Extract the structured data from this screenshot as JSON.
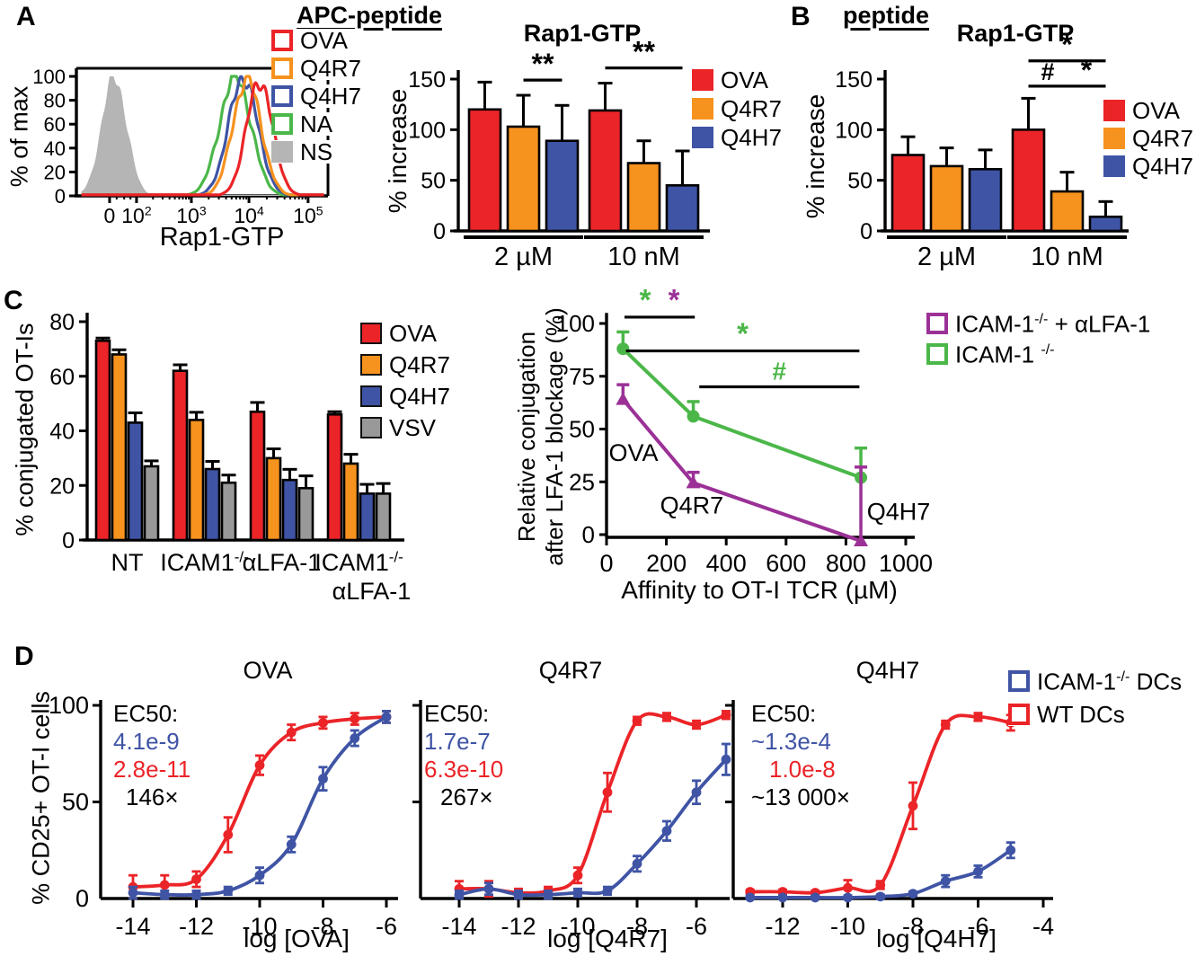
{
  "panel_labels": {
    "a": "A",
    "b": "B",
    "c": "C",
    "d": "D"
  },
  "headers": {
    "apc": "APC-peptide",
    "b": "peptide"
  },
  "colors": {
    "red": "#EB2428",
    "orange": "#F6921E",
    "blue": "#3F54A5",
    "green": "#4BB749",
    "gray": "#B5B5B5",
    "purple": "#9B3197",
    "black": "#000000"
  },
  "legends": {
    "hist": {
      "items": [
        {
          "label": "OVA",
          "color": "#EB2428",
          "filled": false
        },
        {
          "label": "Q4R7",
          "color": "#F6921E",
          "filled": false
        },
        {
          "label": "Q4H7",
          "color": "#3F54A5",
          "filled": false
        },
        {
          "label": "NA",
          "color": "#4BB749",
          "filled": false
        },
        {
          "label": "NS",
          "color": "#B5B5B5",
          "filled": true
        }
      ]
    },
    "rap1_a": {
      "items": [
        {
          "label": "OVA",
          "color": "#EB2428",
          "filled": true
        },
        {
          "label": "Q4R7",
          "color": "#F6921E",
          "filled": true
        },
        {
          "label": "Q4H7",
          "color": "#3F54A5",
          "filled": true
        }
      ]
    },
    "rap1_b": {
      "items": [
        {
          "label": "OVA",
          "color": "#EB2428",
          "filled": true
        },
        {
          "label": "Q4R7",
          "color": "#F6921E",
          "filled": true
        },
        {
          "label": "Q4H7",
          "color": "#3F54A5",
          "filled": true
        }
      ]
    },
    "conjugation": {
      "items": [
        {
          "label": "OVA",
          "color": "#EB2428",
          "filled": true,
          "edge": "#111111"
        },
        {
          "label": "Q4R7",
          "color": "#F6921E",
          "filled": true,
          "edge": "#111111"
        },
        {
          "label": "Q4H7",
          "color": "#3F54A5",
          "filled": true,
          "edge": "#111111"
        },
        {
          "label": "VSV",
          "color": "#999999",
          "filled": true,
          "edge": "#111111"
        }
      ]
    },
    "blockage": {
      "items": [
        {
          "label": "ICAM-1^{-/-} + αLFA-1",
          "color": "#9B3197",
          "filled": false
        },
        {
          "label": "ICAM-1 ^{-/-}",
          "color": "#4BB749",
          "filled": false
        }
      ]
    },
    "dcs": {
      "items": [
        {
          "label": "ICAM-1^{-/-} DCs",
          "color": "#3F54A5",
          "filled": false
        },
        {
          "label": "WT DCs",
          "color": "#EB2428",
          "filled": false
        }
      ]
    }
  },
  "chart_data": [
    {
      "id": "flow-histogram",
      "type": "flow-histogram",
      "title": "",
      "xlabel": "Rap1-GTP",
      "ylabel": "% of max",
      "yticks": [
        0,
        20,
        40,
        60,
        80,
        100
      ],
      "xticks": [
        "0",
        "10^{2}",
        "10^{3}",
        "10^{4}",
        "10^{5}"
      ],
      "series": [
        {
          "name": "NS",
          "color": "#B5B5B5",
          "filled": true,
          "center": 0.15,
          "sigma": 0.05,
          "height": 100
        },
        {
          "name": "NA",
          "color": "#4BB749",
          "filled": false,
          "center": 0.632,
          "sigma": 0.062,
          "height": 100
        },
        {
          "name": "Q4H7",
          "color": "#3F54A5",
          "filled": false,
          "center": 0.663,
          "sigma": 0.058,
          "height": 99
        },
        {
          "name": "Q4R7",
          "color": "#F6921E",
          "filled": false,
          "center": 0.678,
          "sigma": 0.056,
          "height": 98
        },
        {
          "name": "OVA",
          "color": "#EB2428",
          "filled": false,
          "center": 0.728,
          "sigma": 0.052,
          "height": 96
        }
      ]
    },
    {
      "id": "rap1-apc-bars",
      "type": "bar",
      "title": "Rap1-GTP",
      "ylabel": "% increase",
      "ylim": [
        0,
        150
      ],
      "yticks": [
        0,
        50,
        100,
        150
      ],
      "groups": [
        "2 µM",
        "10 nM"
      ],
      "series": [
        {
          "name": "OVA",
          "color": "#EB2428",
          "values": [
            120,
            119
          ],
          "errors": [
            27,
            27
          ]
        },
        {
          "name": "Q4R7",
          "color": "#F6921E",
          "values": [
            103,
            67
          ],
          "errors": [
            31,
            22
          ]
        },
        {
          "name": "Q4H7",
          "color": "#3F54A5",
          "values": [
            89,
            45
          ],
          "errors": [
            35,
            34
          ]
        }
      ],
      "sig": [
        {
          "label": "**",
          "from": [
            0,
            1
          ],
          "to": [
            0,
            2
          ],
          "y": 149
        },
        {
          "label": "**",
          "from": [
            1,
            0
          ],
          "to": [
            1,
            2
          ],
          "y": 161
        }
      ]
    },
    {
      "id": "rap1-peptide-bars",
      "type": "bar",
      "title": "Rap1-GTP",
      "ylabel": "% increase",
      "ylim": [
        0,
        150
      ],
      "yticks": [
        0,
        50,
        100,
        150
      ],
      "groups": [
        "2 µM",
        "10 nM"
      ],
      "series": [
        {
          "name": "OVA",
          "color": "#EB2428",
          "values": [
            75,
            100
          ],
          "errors": [
            18,
            31
          ]
        },
        {
          "name": "Q4R7",
          "color": "#F6921E",
          "values": [
            64,
            39
          ],
          "errors": [
            18,
            19
          ]
        },
        {
          "name": "Q4H7",
          "color": "#3F54A5",
          "values": [
            61,
            14
          ],
          "errors": [
            19,
            15
          ]
        }
      ],
      "sig": [
        {
          "label": "*",
          "from": [
            1,
            0
          ],
          "to": [
            1,
            2
          ],
          "y": 168
        },
        {
          "label": "#",
          "from": [
            1,
            0
          ],
          "to": [
            1,
            1
          ],
          "y": 143
        },
        {
          "label": "*",
          "from": [
            1,
            1
          ],
          "to": [
            1,
            2
          ],
          "y": 143
        }
      ]
    },
    {
      "id": "conjugation-bars",
      "type": "bar",
      "title": "",
      "ylabel": "% conjugated OT-Is",
      "ylim": [
        0,
        80
      ],
      "yticks": [
        0,
        20,
        40,
        60,
        80
      ],
      "groups": [
        [
          "NT"
        ],
        [
          "ICAM1^{-/-}"
        ],
        [
          "αLFA-1"
        ],
        [
          "ICAM1^{-/-}",
          "αLFA-1"
        ]
      ],
      "series": [
        {
          "name": "OVA",
          "color": "#EB2428",
          "values": [
            73,
            62,
            47,
            46
          ],
          "errors": [
            1,
            2.2,
            3.4,
            1
          ]
        },
        {
          "name": "Q4R7",
          "color": "#F6921E",
          "values": [
            68,
            44,
            30,
            28
          ],
          "errors": [
            1.7,
            2.8,
            3.4,
            3.4
          ]
        },
        {
          "name": "Q4H7",
          "color": "#3F54A5",
          "values": [
            43,
            26,
            22,
            17
          ],
          "errors": [
            3.6,
            2.8,
            3.9,
            3.4
          ]
        },
        {
          "name": "VSV",
          "color": "#999999",
          "values": [
            27,
            21,
            19,
            17
          ],
          "errors": [
            2,
            2.8,
            4.5,
            3.7
          ]
        }
      ],
      "sig": []
    },
    {
      "id": "conjugation-line",
      "type": "line",
      "title": "",
      "ylabel_lines": [
        "Relative conjugation",
        "after LFA-1 blockage (%)"
      ],
      "xlabel": "Affinity to OT-I TCR (µM)",
      "xlim": [
        0,
        1000
      ],
      "xticks": [
        0,
        200,
        400,
        600,
        800,
        1000
      ],
      "ylim": [
        0,
        100
      ],
      "yticks": [
        0,
        25,
        50,
        75,
        100
      ],
      "series": [
        {
          "name": "ICAM-1^{-/-}",
          "color": "#4BB749",
          "marker": "circle",
          "x": [
            55,
            290,
            850
          ],
          "y": [
            88,
            56,
            27
          ],
          "errors": [
            8,
            7,
            14
          ]
        },
        {
          "name": "ICAM-1^{-/-} + αLFA-1",
          "color": "#9B3197",
          "marker": "triangle",
          "x": [
            55,
            290,
            850
          ],
          "y": [
            64,
            24.5,
            -3
          ],
          "errors": [
            7,
            5,
            35
          ]
        }
      ],
      "point_labels": [
        {
          "text": "OVA",
          "x": 90,
          "y": 35
        },
        {
          "text": "Q4R7",
          "x": 285,
          "y": 10
        },
        {
          "text": "Q4H7",
          "x": 976,
          "y": 7
        }
      ],
      "sig": [
        {
          "x1": 60,
          "x2": 295,
          "y": 103,
          "labels": [
            {
              "text": "*",
              "color": "#4BB749"
            },
            {
              "text": "*",
              "color": "#9B3197"
            }
          ]
        },
        {
          "x1": 65,
          "x2": 845,
          "y": 87,
          "labels": [
            {
              "text": "*",
              "color": "#4BB749"
            }
          ]
        },
        {
          "x1": 310,
          "x2": 845,
          "y": 70,
          "labels": [
            {
              "text": "#",
              "color": "#4BB749"
            }
          ]
        }
      ]
    },
    {
      "id": "dose-ova",
      "type": "dose",
      "title": "OVA",
      "xlabel": "log [OVA]",
      "ylabel": "% CD25+ OT-I cells",
      "xticks": [
        -14,
        -12,
        -10,
        -8,
        -6
      ],
      "yticks": [
        0,
        50,
        100
      ],
      "ylim": [
        0,
        100
      ],
      "ec50": {
        "header": "EC50:",
        "icam_dcs": "4.1e-9",
        "wt_dcs": "2.8e-11",
        "fold": "146×"
      },
      "series": [
        {
          "name": "WT DCs",
          "color": "#EB2428",
          "x": [
            -14,
            -13,
            -12,
            -11,
            -10,
            -9,
            -8,
            -7,
            -6
          ],
          "y": [
            6,
            7,
            10,
            33,
            69,
            86,
            91,
            93,
            94
          ],
          "errors": [
            6,
            5,
            4,
            9,
            5,
            4,
            3,
            3,
            3
          ]
        },
        {
          "name": "ICAM-1^{-/-} DCs",
          "color": "#3F54A5",
          "x": [
            -14,
            -13,
            -12,
            -11,
            -10,
            -9,
            -8,
            -7,
            -6
          ],
          "y": [
            3,
            2,
            2,
            4,
            12,
            28,
            62,
            83,
            94
          ],
          "errors": [
            3,
            2,
            2,
            2,
            4,
            4,
            6,
            4,
            3
          ]
        }
      ]
    },
    {
      "id": "dose-q4r7",
      "type": "dose",
      "title": "Q4R7",
      "xlabel": "log [Q4R7]",
      "ylabel": "% CD25+ OT-I cells",
      "xticks": [
        -14,
        -12,
        -10,
        -8,
        -6
      ],
      "yticks": [
        0,
        50,
        100
      ],
      "ylim": [
        0,
        100
      ],
      "ec50": {
        "header": "EC50:",
        "icam_dcs": "1.7e-7",
        "wt_dcs": "6.3e-10",
        "fold": "267×"
      },
      "series": [
        {
          "name": "WT DCs",
          "color": "#EB2428",
          "x": [
            -14,
            -13,
            -12,
            -11,
            -10,
            -9,
            -8,
            -7,
            -6,
            -5
          ],
          "y": [
            5,
            5,
            3,
            4,
            12,
            55,
            92,
            94,
            90,
            95
          ],
          "errors": [
            4,
            4,
            2,
            2,
            4,
            10,
            2,
            2,
            2,
            2
          ]
        },
        {
          "name": "ICAM-1^{-/-} DCs",
          "color": "#3F54A5",
          "x": [
            -14,
            -13,
            -12,
            -11,
            -10,
            -9,
            -8,
            -7,
            -6,
            -5
          ],
          "y": [
            2,
            5,
            2,
            2,
            3,
            4,
            18,
            35,
            55,
            72
          ],
          "errors": [
            2,
            3,
            2,
            2,
            2,
            2,
            4,
            5,
            6,
            8
          ]
        }
      ]
    },
    {
      "id": "dose-q4h7",
      "type": "dose",
      "title": "Q4H7",
      "xlabel": "log [Q4H7]",
      "ylabel": "% CD25+ OT-I cells",
      "xticks": [
        -12,
        -10,
        -8,
        -6,
        -4
      ],
      "yticks": [
        0,
        50,
        100
      ],
      "ylim": [
        0,
        100
      ],
      "ec50": {
        "header": "EC50:",
        "icam_dcs": "~1.3e-4",
        "wt_dcs": "1.0e-8",
        "fold": "~13 000×"
      },
      "series": [
        {
          "name": "WT DCs",
          "color": "#EB2428",
          "x": [
            -13,
            -12,
            -11,
            -10,
            -9,
            -8,
            -7,
            -6,
            -5
          ],
          "y": [
            3.5,
            3.5,
            3,
            5.5,
            7,
            48,
            90,
            94,
            91
          ],
          "errors": [
            1,
            1,
            1,
            4,
            2,
            12,
            2,
            2,
            4
          ]
        },
        {
          "name": "ICAM-1^{-/-} DCs",
          "color": "#3F54A5",
          "x": [
            -13,
            -12,
            -11,
            -10,
            -9,
            -8,
            -7,
            -6,
            -5
          ],
          "y": [
            0.5,
            0.5,
            0.5,
            0.5,
            1,
            2.5,
            9,
            14,
            25
          ],
          "errors": [
            1,
            1,
            1,
            1,
            1,
            1,
            3,
            3,
            4
          ]
        }
      ]
    }
  ]
}
